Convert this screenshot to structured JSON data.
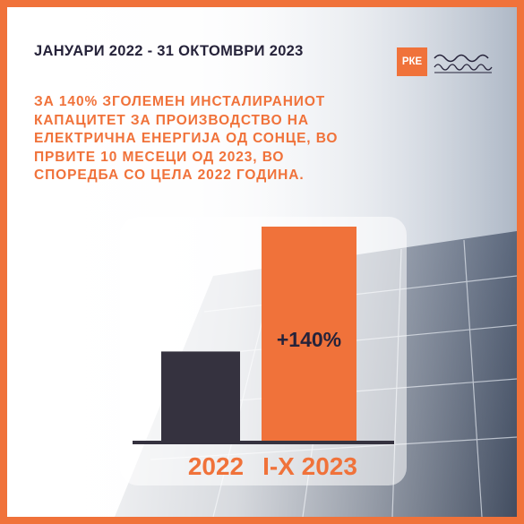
{
  "header": {
    "title": "ЈАНУАРИ 2022 - 31 ОКТОМВРИ 2023",
    "logo_text": "РКЕ"
  },
  "headline": {
    "lines": [
      "ЗА 140% ЗГОЛЕМЕН ИНСТАЛИРАНИОТ",
      "КАПАЦИТЕТ ЗА ПРОИЗВОДСТВО НА",
      "ЕЛЕКТРИЧНА ЕНЕРГИЈА ОД СОНЦЕ, ВО",
      "ПРВИТЕ 10 МЕСЕЦИ ОД 2023, ВО",
      "СПОРЕДБА СО ЦЕЛА 2022 ГОДИНА."
    ]
  },
  "colors": {
    "accent": "#f0723a",
    "dark": "#35323f",
    "text_dark": "#26233a"
  },
  "chart_data": {
    "type": "bar",
    "categories": [
      "2022",
      "I-X 2023"
    ],
    "values": [
      100,
      240
    ],
    "data_labels": [
      "",
      "+140%"
    ],
    "bar_colors": [
      "#35323f",
      "#f0723a"
    ],
    "ylim": [
      0,
      240
    ],
    "title": "",
    "xlabel": "",
    "ylabel": "",
    "grid": false
  }
}
